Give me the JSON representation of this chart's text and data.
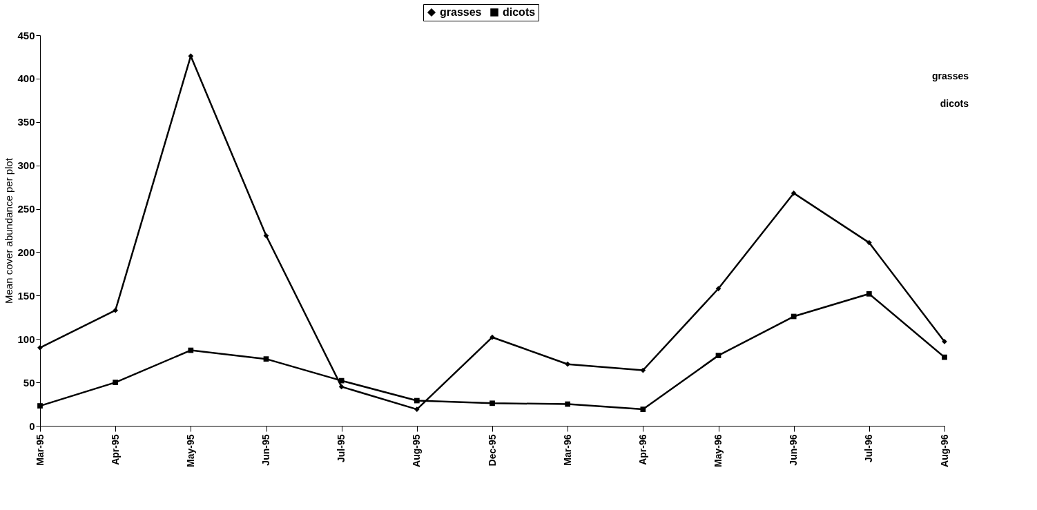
{
  "chart_data": {
    "type": "line",
    "ylabel": "Mean cover abundance per plot",
    "categories": [
      "Mar-95",
      "Apr-95",
      "May-95",
      "Jun-95",
      "Jul-95",
      "Aug-95",
      "Dec-95",
      "Mar-96",
      "Apr-96",
      "May-96",
      "Jun-96",
      "Jul-96",
      "Aug-96"
    ],
    "series": [
      {
        "name": "grasses",
        "color": "#000000",
        "marker": "diamond",
        "values": [
          90,
          133,
          426,
          219,
          45,
          19,
          102,
          71,
          64,
          158,
          268,
          211,
          97
        ]
      },
      {
        "name": "dicots",
        "color": "#000000",
        "marker": "square",
        "values": [
          23,
          50,
          87,
          77,
          52,
          29,
          26,
          25,
          19,
          81,
          126,
          152,
          79
        ]
      }
    ],
    "ylim": [
      0,
      450
    ],
    "yticks": [
      0,
      50,
      100,
      150,
      200,
      250,
      300,
      350,
      400,
      450
    ],
    "grid": false,
    "legend": "top",
    "line_style": "solid",
    "annotations": [
      "grasses",
      "dicots"
    ]
  }
}
